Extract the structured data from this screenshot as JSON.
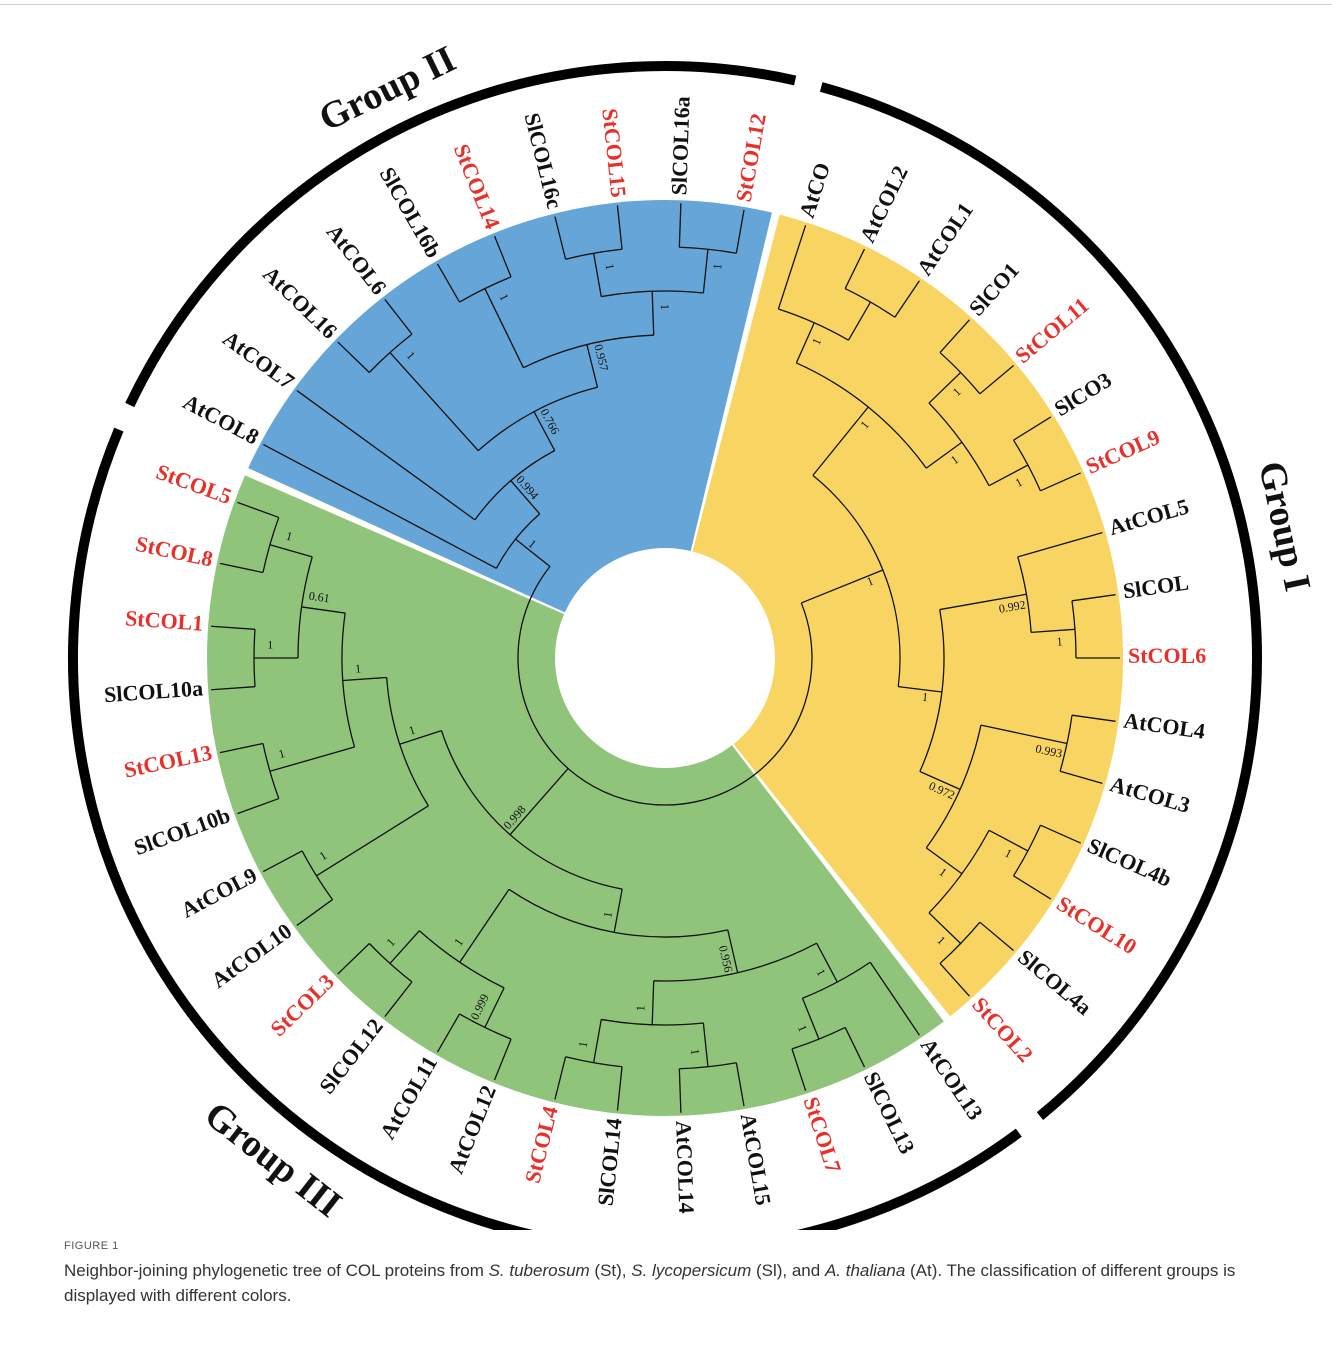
{
  "figure": {
    "label": "FIGURE 1",
    "caption": [
      "Neighbor-joining phylogenetic tree of COL proteins from ",
      "S. tuberosum",
      " (St), ",
      "S. lycopersicum",
      " (Sl), and ",
      "A. thaliana",
      " (At). The classification of different groups is displayed with different colors."
    ]
  },
  "tree": {
    "children": [
      {
        "group": "Group I",
        "color": "#f8d562",
        "support": 1,
        "children": [
          {
            "support": 1,
            "children": [
              {
                "support": 1,
                "children": [
                  {
                    "label": "AtCO",
                    "color": "#111111"
                  },
                  {
                    "children": [
                      {
                        "label": "AtCOL2",
                        "color": "#111111"
                      },
                      {
                        "label": "AtCOL1",
                        "color": "#111111"
                      }
                    ]
                  }
                ]
              },
              {
                "support": 1,
                "children": [
                  {
                    "support": 1,
                    "children": [
                      {
                        "label": "SlCO1",
                        "color": "#111111"
                      },
                      {
                        "label": "StCOL11",
                        "color": "#e8302a"
                      }
                    ]
                  },
                  {
                    "support": 1,
                    "children": [
                      {
                        "label": "SlCO3",
                        "color": "#111111"
                      },
                      {
                        "label": "StCOL9",
                        "color": "#e8302a"
                      }
                    ]
                  }
                ]
              }
            ]
          },
          {
            "support": 1,
            "children": [
              {
                "support": 0.992,
                "children": [
                  {
                    "label": "AtCOL5",
                    "color": "#111111"
                  },
                  {
                    "support": 1,
                    "children": [
                      {
                        "label": "SlCOL",
                        "color": "#111111"
                      },
                      {
                        "label": "StCOL6",
                        "color": "#e8302a"
                      }
                    ]
                  }
                ]
              },
              {
                "support": 0.972,
                "children": [
                  {
                    "support": 0.993,
                    "children": [
                      {
                        "label": "AtCOL4",
                        "color": "#111111"
                      },
                      {
                        "label": "AtCOL3",
                        "color": "#111111"
                      }
                    ]
                  },
                  {
                    "support": 1,
                    "children": [
                      {
                        "support": 1,
                        "children": [
                          {
                            "label": "SlCOL4b",
                            "color": "#111111"
                          },
                          {
                            "label": "StCOL10",
                            "color": "#e8302a"
                          }
                        ]
                      },
                      {
                        "support": 1,
                        "children": [
                          {
                            "label": "SlCOL4a",
                            "color": "#111111"
                          },
                          {
                            "label": "StCOL2",
                            "color": "#e8302a"
                          }
                        ]
                      }
                    ]
                  }
                ]
              }
            ]
          }
        ]
      },
      {
        "group": "Group III",
        "color": "#90c47a",
        "support": 0.998,
        "children": [
          {
            "support": 1,
            "children": [
              {
                "support": 0.956,
                "children": [
                  {
                    "support": 1,
                    "children": [
                      {
                        "label": "AtCOL13",
                        "color": "#111111"
                      },
                      {
                        "support": 1,
                        "children": [
                          {
                            "label": "SlCOL13",
                            "color": "#111111"
                          },
                          {
                            "label": "StCOL7",
                            "color": "#e8302a"
                          }
                        ]
                      }
                    ]
                  },
                  {
                    "support": 1,
                    "children": [
                      {
                        "support": 1,
                        "children": [
                          {
                            "label": "AtCOL15",
                            "color": "#111111"
                          },
                          {
                            "label": "AtCOL14",
                            "color": "#111111"
                          }
                        ]
                      },
                      {
                        "support": 1,
                        "children": [
                          {
                            "label": "SlCOL14",
                            "color": "#111111"
                          },
                          {
                            "label": "StCOL4",
                            "color": "#e8302a"
                          }
                        ]
                      }
                    ]
                  }
                ]
              },
              {
                "support": 1,
                "children": [
                  {
                    "support": 0.999,
                    "children": [
                      {
                        "label": "AtCOL12",
                        "color": "#111111"
                      },
                      {
                        "label": "AtCOL11",
                        "color": "#111111"
                      }
                    ]
                  },
                  {
                    "support": 1,
                    "children": [
                      {
                        "label": "SlCOL12",
                        "color": "#111111"
                      },
                      {
                        "label": "StCOL3",
                        "color": "#e8302a"
                      }
                    ]
                  }
                ]
              }
            ]
          },
          {
            "support": 1,
            "children": [
              {
                "support": 1,
                "children": [
                  {
                    "label": "AtCOL10",
                    "color": "#111111"
                  },
                  {
                    "label": "AtCOL9",
                    "color": "#111111"
                  }
                ]
              },
              {
                "support": 1,
                "children": [
                  {
                    "support": 1,
                    "children": [
                      {
                        "label": "SlCOL10b",
                        "color": "#111111"
                      },
                      {
                        "label": "StCOL13",
                        "color": "#e8302a"
                      }
                    ]
                  },
                  {
                    "support": 0.61,
                    "children": [
                      {
                        "support": 1,
                        "children": [
                          {
                            "label": "SlCOL10a",
                            "color": "#111111"
                          },
                          {
                            "label": "StCOL1",
                            "color": "#e8302a"
                          }
                        ]
                      },
                      {
                        "support": 1,
                        "children": [
                          {
                            "label": "StCOL8",
                            "color": "#e8302a"
                          },
                          {
                            "label": "StCOL5",
                            "color": "#e8302a"
                          }
                        ]
                      }
                    ]
                  }
                ]
              }
            ]
          }
        ]
      },
      {
        "group": "Group II",
        "color": "#66a5d8",
        "support": 1,
        "children": [
          {
            "label": "AtCOL8",
            "color": "#111111"
          },
          {
            "support": 0.994,
            "children": [
              {
                "label": "AtCOL7",
                "color": "#111111"
              },
              {
                "support": 0.766,
                "children": [
                  {
                    "support": 1,
                    "children": [
                      {
                        "label": "AtCOL16",
                        "color": "#111111"
                      },
                      {
                        "label": "AtCOL6",
                        "color": "#111111"
                      }
                    ]
                  },
                  {
                    "support": 0.957,
                    "children": [
                      {
                        "support": 1,
                        "children": [
                          {
                            "label": "SlCOL16b",
                            "color": "#111111"
                          },
                          {
                            "label": "StCOL14",
                            "color": "#e8302a"
                          }
                        ]
                      },
                      {
                        "support": 1,
                        "children": [
                          {
                            "support": 1,
                            "children": [
                              {
                                "label": "SlCOL16c",
                                "color": "#111111"
                              },
                              {
                                "label": "StCOL15",
                                "color": "#e8302a"
                              }
                            ]
                          },
                          {
                            "support": 1,
                            "children": [
                              {
                                "label": "SlCOL16a",
                                "color": "#111111"
                              },
                              {
                                "label": "StCOL12",
                                "color": "#e8302a"
                              }
                            ]
                          }
                        ]
                      }
                    ]
                  }
                ]
              }
            ]
          }
        ]
      }
    ]
  }
}
